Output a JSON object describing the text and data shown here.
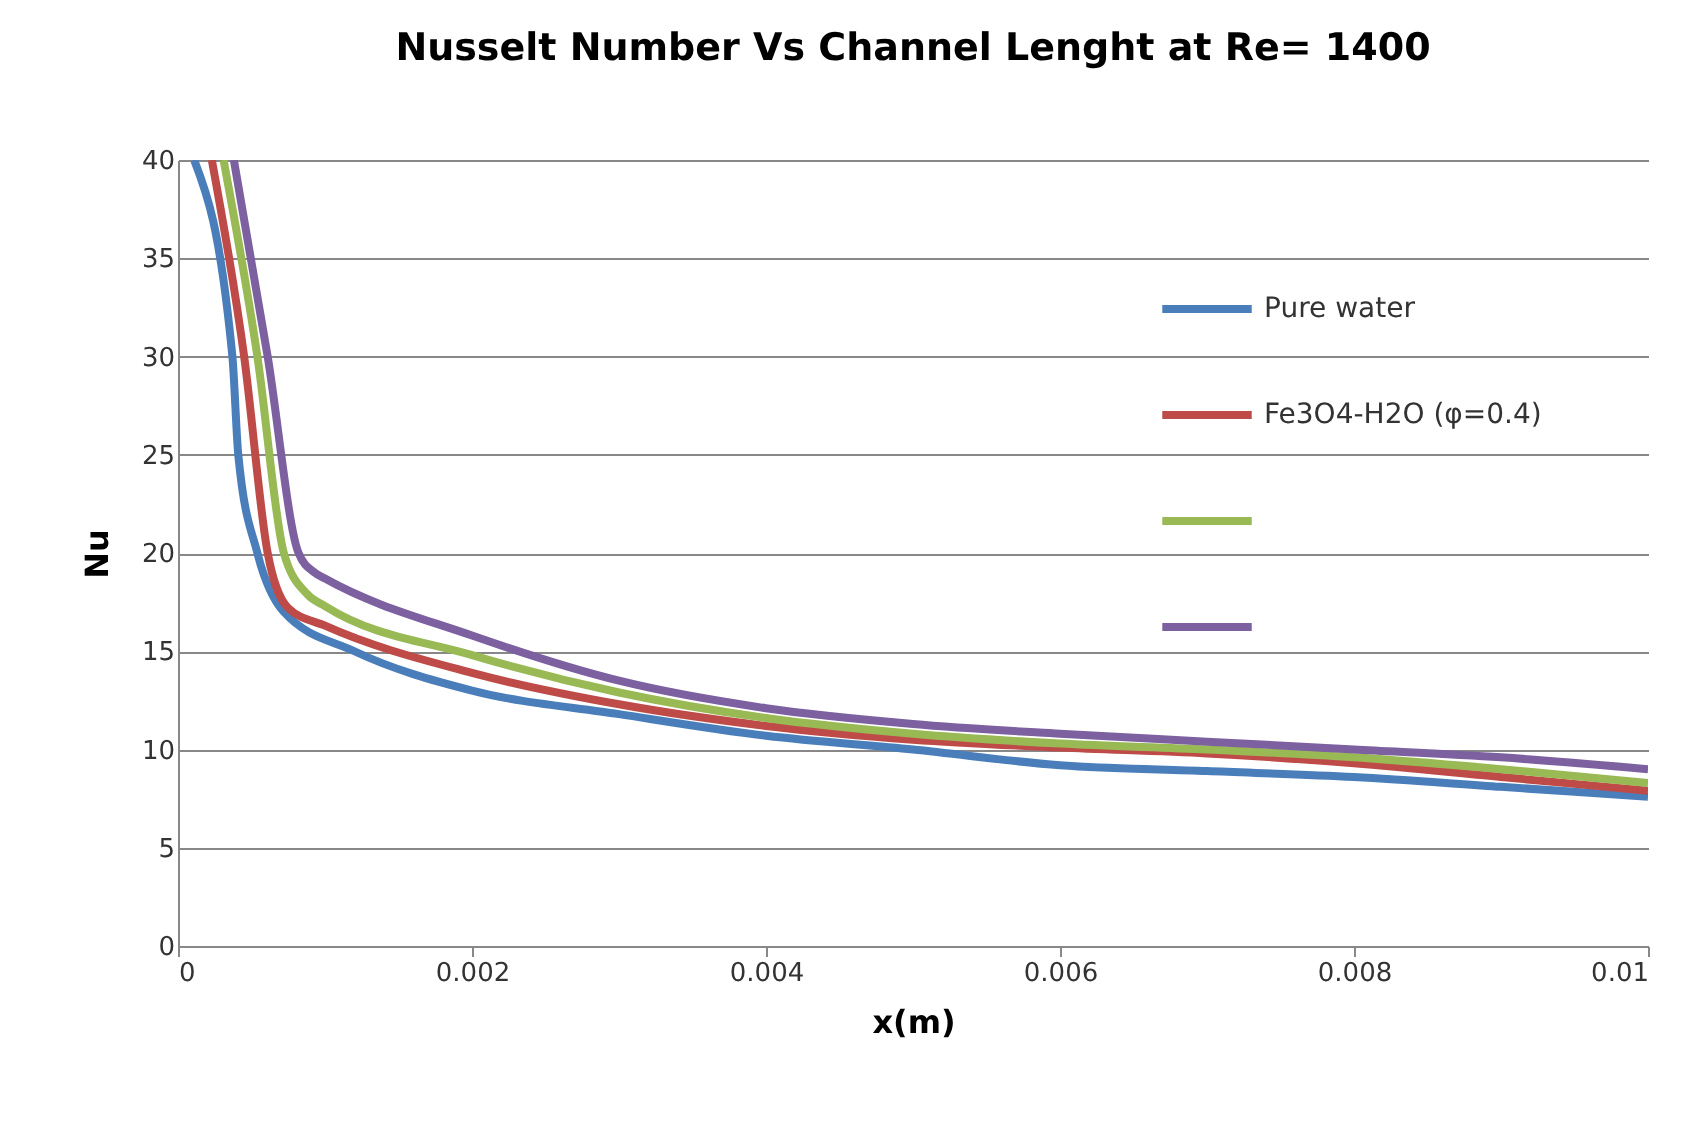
{
  "chart_data": {
    "type": "line",
    "title": "Nusselt Number Vs Channel Lenght at Re= 1400",
    "xlabel": "x(m)",
    "ylabel": "Nu",
    "xlim": [
      0,
      0.01
    ],
    "xticks": [
      0,
      0.002,
      0.004,
      0.006,
      0.008,
      0.01
    ],
    "ylim": [
      0,
      40
    ],
    "yticks": [
      0,
      5,
      10,
      15,
      20,
      25,
      30,
      35,
      40
    ],
    "grid": "y",
    "legend": "right",
    "line_style": "solid",
    "marker": "none",
    "series": [
      {
        "name": "Pure water",
        "color": "#4a7ebb",
        "x": [
          0.00011,
          0.00037,
          0.00041,
          0.00054,
          0.00072,
          0.0012,
          0.002,
          0.003,
          0.004,
          0.005,
          0.006,
          0.007,
          0.008,
          0.009,
          0.01
        ],
        "values": [
          40,
          30,
          25,
          20,
          17,
          15,
          13,
          11.8,
          10.7,
          10,
          9.2,
          8.9,
          8.6,
          8.1,
          7.6
        ]
      },
      {
        "name": "Fe3O4-H2O (φ=0.4)",
        "color": "#be4b48",
        "x": [
          0.00023,
          0.00045,
          0.00061,
          0.00075,
          0.001,
          0.002,
          0.003,
          0.004,
          0.005,
          0.006,
          0.007,
          0.008,
          0.009,
          0.01
        ],
        "values": [
          40,
          30,
          20,
          17.2,
          16.3,
          13.9,
          12.3,
          11.2,
          10.5,
          10.1,
          9.8,
          9.3,
          8.6,
          7.9
        ]
      },
      {
        "name": null,
        "color": "#98b954",
        "x": [
          0.00031,
          0.00054,
          0.00072,
          0.00088,
          0.001,
          0.002,
          0.003,
          0.004,
          0.005,
          0.006,
          0.007,
          0.008,
          0.009,
          0.01
        ],
        "values": [
          40,
          30,
          20,
          17.9,
          17.3,
          14.8,
          12.9,
          11.6,
          10.8,
          10.3,
          10.0,
          9.6,
          9.0,
          8.3
        ]
      },
      {
        "name": null,
        "color": "#7d60a0",
        "x": [
          0.00038,
          0.00061,
          0.00082,
          0.00093,
          0.001,
          0.002,
          0.003,
          0.004,
          0.005,
          0.006,
          0.007,
          0.008,
          0.009,
          0.01
        ],
        "values": [
          40,
          30,
          20,
          19.0,
          18.7,
          15.8,
          13.5,
          12.1,
          11.3,
          10.8,
          10.4,
          10.0,
          9.6,
          9.0
        ]
      }
    ]
  }
}
